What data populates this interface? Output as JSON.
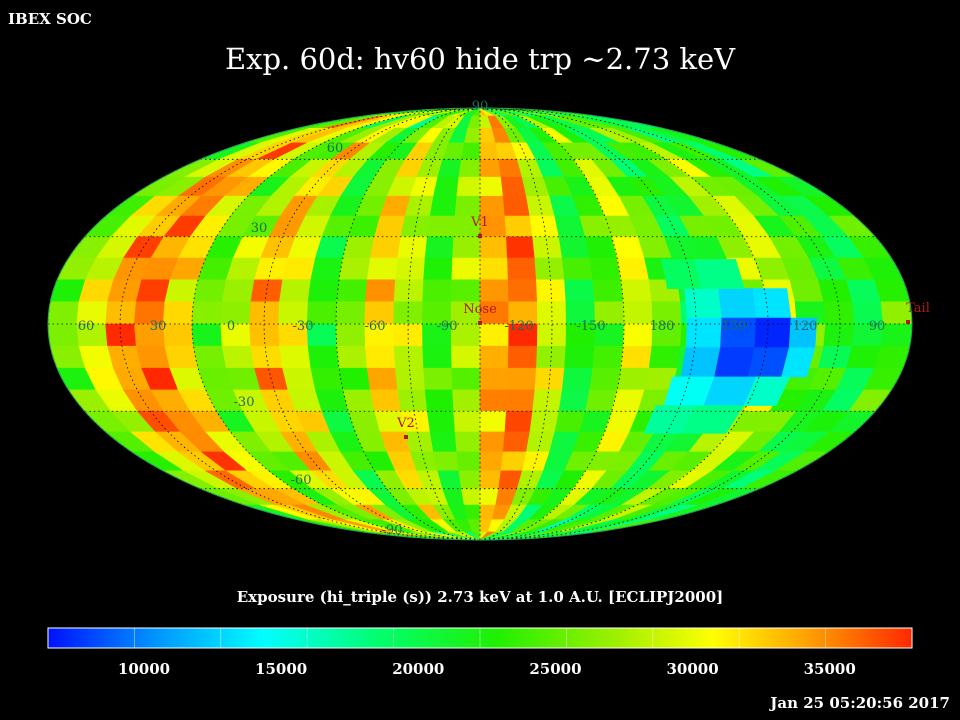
{
  "header": {
    "org": "IBEX SOC",
    "title": "Exp.   60d: hv60 hide trp ~2.73 keV"
  },
  "map": {
    "projection": "Mollweide",
    "lat_labels": {
      "left": [
        "60",
        "30",
        "-30",
        "-60"
      ],
      "top": "90",
      "bottom": "-90"
    },
    "lon_labels": [
      "60",
      "30",
      "0",
      "-30",
      "-60",
      "-90",
      "-120",
      "-150",
      "180",
      "150",
      "120",
      "90"
    ],
    "markers": [
      {
        "label": "V1",
        "lon": -90,
        "lat": 34
      },
      {
        "label": "Nose",
        "lon": -90,
        "lat": 5
      },
      {
        "label": "V2",
        "lon": -70,
        "lat": -34
      },
      {
        "label": "Tail",
        "lon": 90,
        "lat": -3
      }
    ],
    "colors": {
      "marker": "#b01818",
      "label_lat_lon": "#1a6f5a",
      "grid": "#000000"
    }
  },
  "colorbar": {
    "caption": "Exposure (hi_triple (s))  2.73 keV at 1.0 A.U. [ECLIPJ2000]",
    "range": [
      6500,
      38000
    ],
    "ticks": [
      "10000",
      "15000",
      "20000",
      "25000",
      "30000",
      "35000"
    ],
    "tick_values": [
      10000,
      15000,
      20000,
      25000,
      30000,
      35000
    ]
  },
  "footer": {
    "timestamp": "Jan 25 05:20:56 2017"
  }
}
